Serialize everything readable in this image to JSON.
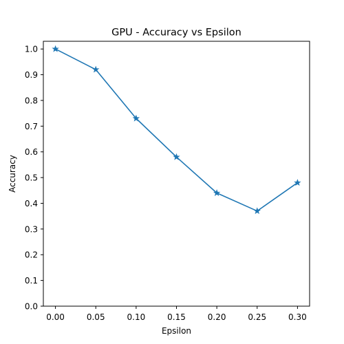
{
  "chart_data": {
    "type": "line",
    "title": "GPU - Accuracy vs Epsilon",
    "xlabel": "Epsilon",
    "ylabel": "Accuracy",
    "xlim": [
      -0.015,
      0.315
    ],
    "ylim": [
      0.0,
      1.03
    ],
    "xticks": [
      0.0,
      0.05,
      0.1,
      0.15,
      0.2,
      0.25,
      0.3
    ],
    "xtick_labels": [
      "0.00",
      "0.05",
      "0.10",
      "0.15",
      "0.20",
      "0.25",
      "0.30"
    ],
    "yticks": [
      0.0,
      0.1,
      0.2,
      0.3,
      0.4,
      0.5,
      0.6,
      0.7,
      0.8,
      0.9,
      1.0
    ],
    "ytick_labels": [
      "0.0",
      "0.1",
      "0.2",
      "0.3",
      "0.4",
      "0.5",
      "0.6",
      "0.7",
      "0.8",
      "0.9",
      "1.0"
    ],
    "grid": false,
    "marker": "star",
    "color": "#1f77b4",
    "x": [
      0.0,
      0.05,
      0.1,
      0.15,
      0.2,
      0.25,
      0.3
    ],
    "y": [
      1.0,
      0.92,
      0.73,
      0.58,
      0.44,
      0.37,
      0.48
    ]
  }
}
